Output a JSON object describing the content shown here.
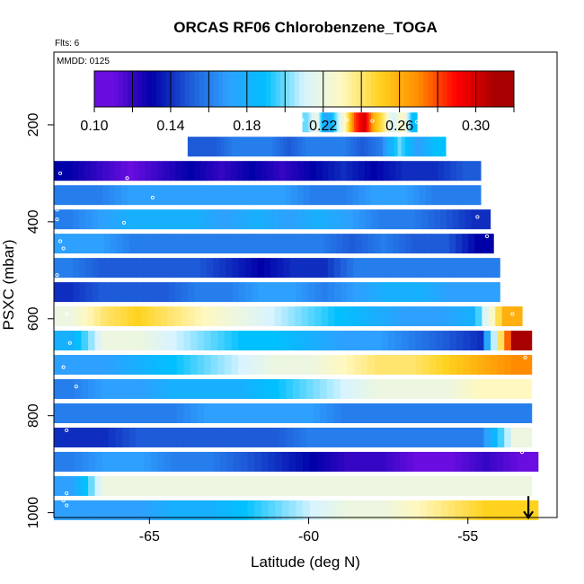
{
  "chart_data": {
    "type": "heatmap",
    "title": "ORCAS RF06 Chlorobenzene_TOGA",
    "flights_label": "Flts: 6",
    "date_label": "MMDD: 0125",
    "xlabel": "Latitude (deg N)",
    "ylabel": "PSXC (mbar)",
    "xlim": [
      -68,
      -52.2
    ],
    "ylim": [
      1010,
      50
    ],
    "xticks": [
      -65,
      -60,
      -55
    ],
    "yticks": [
      200,
      400,
      600,
      800,
      1000
    ],
    "colorbar": {
      "min": 0.1,
      "max": 0.32,
      "ticks": [
        0.1,
        0.14,
        0.18,
        0.22,
        0.26,
        0.3
      ],
      "tick_labels": [
        "0.10",
        "0.14",
        "0.18",
        "0.22",
        "0.26",
        "0.30"
      ],
      "boundaries": [
        0.1,
        0.12,
        0.14,
        0.16,
        0.18,
        0.2,
        0.22,
        0.24,
        0.26,
        0.28,
        0.3,
        0.32
      ],
      "colors": [
        "#6a0de0",
        "#0000a8",
        "#1e5bd8",
        "#2ea0ff",
        "#00c0ff",
        "#d8f4ff",
        "#fff8c0",
        "#ffd21e",
        "#ff8c00",
        "#ff0000",
        "#a80000"
      ]
    },
    "rows": [
      {
        "p": 195,
        "lat_start": -60.2,
        "lat_end": -56.6,
        "values": [
          0.2,
          0.22,
          0.17,
          0.2,
          0.23,
          0.28,
          0.3,
          0.26,
          0.24,
          0.21,
          0.23,
          0.19
        ]
      },
      {
        "p": 245,
        "lat_start": -63.8,
        "lat_end": -55.7,
        "values": [
          0.15,
          0.15,
          0.16,
          0.16,
          0.16,
          0.15,
          0.16,
          0.16,
          0.16,
          0.15,
          0.16,
          0.2,
          0.17,
          0.19
        ]
      },
      {
        "p": 295,
        "lat_start": -68.0,
        "lat_end": -54.6,
        "values": [
          0.13,
          0.12,
          0.11,
          0.12,
          0.13,
          0.12,
          0.13,
          0.12,
          0.13,
          0.14,
          0.13,
          0.14,
          0.14,
          0.15
        ]
      },
      {
        "p": 345,
        "lat_start": -68.0,
        "lat_end": -54.6,
        "values": [
          0.16,
          0.16,
          0.17,
          0.17,
          0.17,
          0.17,
          0.17,
          0.17,
          0.16,
          0.16,
          0.17,
          0.17,
          0.16,
          0.16
        ]
      },
      {
        "p": 395,
        "lat_start": -68.0,
        "lat_end": -54.3,
        "values": [
          0.16,
          0.17,
          0.18,
          0.18,
          0.18,
          0.17,
          0.18,
          0.17,
          0.18,
          0.17,
          0.16,
          0.16,
          0.15,
          0.14
        ]
      },
      {
        "p": 445,
        "lat_start": -68.0,
        "lat_end": -54.2,
        "values": [
          0.17,
          0.17,
          0.16,
          0.16,
          0.16,
          0.16,
          0.16,
          0.16,
          0.16,
          0.15,
          0.16,
          0.15,
          0.15,
          0.13
        ]
      },
      {
        "p": 495,
        "lat_start": -68.0,
        "lat_end": -54.0,
        "values": [
          0.16,
          0.15,
          0.15,
          0.15,
          0.15,
          0.14,
          0.13,
          0.14,
          0.14,
          0.16,
          0.16,
          0.16,
          0.16,
          0.16
        ]
      },
      {
        "p": 545,
        "lat_start": -68.0,
        "lat_end": -54.0,
        "values": [
          0.14,
          0.15,
          0.15,
          0.15,
          0.16,
          0.16,
          0.17,
          0.17,
          0.16,
          0.17,
          0.18,
          0.18,
          0.17,
          0.17
        ]
      },
      {
        "p": 595,
        "lat_start": -68.0,
        "lat_end": -53.3,
        "values": [
          0.22,
          0.24,
          0.25,
          0.24,
          0.23,
          0.22,
          0.21,
          0.2,
          0.19,
          0.18,
          0.17,
          0.17,
          0.18,
          0.26
        ]
      },
      {
        "p": 645,
        "lat_start": -68.0,
        "lat_end": -53.0,
        "values": [
          0.18,
          0.22,
          0.22,
          0.21,
          0.2,
          0.19,
          0.19,
          0.18,
          0.17,
          0.17,
          0.16,
          0.15,
          0.14,
          0.31
        ]
      },
      {
        "p": 695,
        "lat_start": -68.0,
        "lat_end": -53.0,
        "values": [
          0.17,
          0.17,
          0.18,
          0.19,
          0.2,
          0.21,
          0.22,
          0.22,
          0.23,
          0.24,
          0.24,
          0.25,
          0.26,
          0.27
        ]
      },
      {
        "p": 745,
        "lat_start": -68.0,
        "lat_end": -53.0,
        "values": [
          0.16,
          0.17,
          0.17,
          0.18,
          0.18,
          0.18,
          0.19,
          0.2,
          0.21,
          0.22,
          0.22,
          0.22,
          0.23,
          0.23
        ]
      },
      {
        "p": 795,
        "lat_start": -68.0,
        "lat_end": -53.0,
        "values": [
          0.16,
          0.16,
          0.16,
          0.16,
          0.17,
          0.17,
          0.17,
          0.17,
          0.16,
          0.16,
          0.16,
          0.16,
          0.16,
          0.16
        ]
      },
      {
        "p": 845,
        "lat_start": -68.0,
        "lat_end": -53.0,
        "values": [
          0.14,
          0.14,
          0.15,
          0.15,
          0.15,
          0.15,
          0.15,
          0.16,
          0.16,
          0.16,
          0.16,
          0.16,
          0.16,
          0.22
        ]
      },
      {
        "p": 895,
        "lat_start": -68.0,
        "lat_end": -52.8,
        "values": [
          0.16,
          0.17,
          0.17,
          0.16,
          0.16,
          0.15,
          0.14,
          0.13,
          0.12,
          0.12,
          0.11,
          0.11,
          0.12,
          0.11
        ]
      },
      {
        "p": 945,
        "lat_start": -68.0,
        "lat_end": -53.0,
        "values": [
          0.17,
          0.22,
          0.22,
          0.22,
          0.22,
          0.22,
          0.22,
          0.22,
          0.22,
          0.22,
          0.22,
          0.22,
          0.22,
          0.22
        ]
      },
      {
        "p": 995,
        "lat_start": -68.0,
        "lat_end": -52.8,
        "values": [
          0.17,
          0.17,
          0.17,
          0.18,
          0.18,
          0.19,
          0.2,
          0.21,
          0.22,
          0.22,
          0.23,
          0.24,
          0.25,
          0.25
        ]
      }
    ],
    "points": [
      [
        -60.2,
        190
      ],
      [
        -58.8,
        190
      ],
      [
        -58.0,
        192
      ],
      [
        -57.1,
        193
      ],
      [
        -56.6,
        194
      ],
      [
        -67.8,
        260
      ],
      [
        -67.8,
        300
      ],
      [
        -65.7,
        310
      ],
      [
        -64.9,
        350
      ],
      [
        -67.9,
        375
      ],
      [
        -67.9,
        395
      ],
      [
        -65.8,
        402
      ],
      [
        -67.8,
        440
      ],
      [
        -67.7,
        455
      ],
      [
        -67.9,
        510
      ],
      [
        -67.6,
        590
      ],
      [
        -67.5,
        650
      ],
      [
        -67.7,
        700
      ],
      [
        -67.3,
        740
      ],
      [
        -67.6,
        830
      ],
      [
        -67.6,
        960
      ],
      [
        -67.7,
        975
      ],
      [
        -67.6,
        985
      ],
      [
        -55.0,
        260
      ],
      [
        -54.7,
        390
      ],
      [
        -54.4,
        430
      ],
      [
        -53.6,
        590
      ],
      [
        -53.2,
        680
      ],
      [
        -53.3,
        875
      ]
    ],
    "arrow": {
      "lat": -53.1,
      "p": 990
    }
  }
}
